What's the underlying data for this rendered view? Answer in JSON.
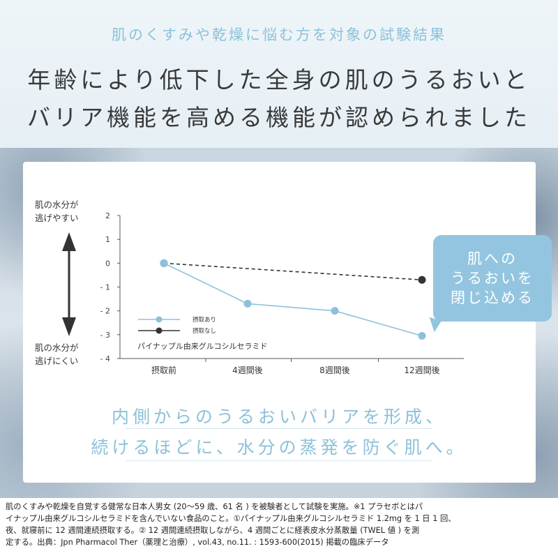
{
  "header": {
    "subtitle": "肌のくすみや乾燥に悩む方を対象の試験結果",
    "headline_line1": "年齢により低下した全身の肌のうるおいと",
    "headline_line2": "バリア機能を高める機能が認められました"
  },
  "chart_data": {
    "type": "line",
    "categories": [
      "摂取前",
      "4週間後",
      "8週間後",
      "12週間後"
    ],
    "series": [
      {
        "name": "摂取あり",
        "values": [
          0,
          -1.7,
          -2.0,
          -3.05
        ],
        "color": "#8dc0dc",
        "dashed": false
      },
      {
        "name": "摂取なし",
        "values": [
          0,
          null,
          null,
          -0.7
        ],
        "color": "#333333",
        "dashed": true
      }
    ],
    "ylim": [
      -4,
      2
    ],
    "yticks": [
      2,
      1,
      0,
      -1,
      -2,
      -3,
      -4
    ],
    "ytick_labels": [
      "2",
      "1",
      "0",
      "- 1",
      "- 2",
      "- 3",
      "- 4"
    ],
    "ylabel_top": [
      "肌の水分が",
      "逃げやすい"
    ],
    "ylabel_bottom": [
      "肌の水分が",
      "逃げにくい"
    ],
    "legend_title": "パイナップル由来グルコシルセラミド",
    "legend_position": "bottom-left"
  },
  "bubble": {
    "lines": [
      "肌への",
      "うるおいを",
      "閉じ込める"
    ]
  },
  "tagline": {
    "line1": "内側からのうるおいバリアを形成、",
    "line2": "続けるほどに、水分の蒸発を防ぐ肌へ。"
  },
  "footnote": {
    "line1": "肌のくすみや乾燥を自覚する健常な日本人男女 (20～59 歳、61 名 ) を被験者として試験を実施。※1 プラセボとはパ",
    "line2": "イナップル由来グルコシルセラミドを含んでいない食品のこと。①パイナップル由来グルコシルセラミド 1.2mg を 1 日 1 回、",
    "line3": "夜、就寝前に 12 週間連続摂取する。② 12 週間連続摂取しながら、4 週間ごとに経表皮水分蒸散量 (TWEL 値 ) を測",
    "line4": "定する。出典：Jpn Pharmacol Ther（薬理と治療）, vol.43, no.11. : 1593-600(2015) 掲載の臨床データ"
  }
}
